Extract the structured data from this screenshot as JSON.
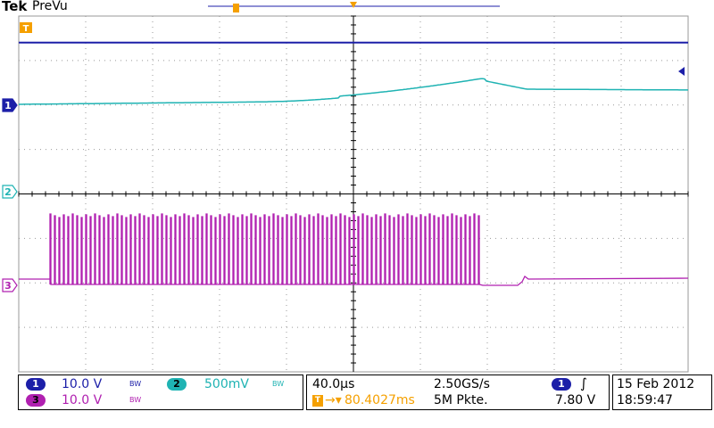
{
  "header": {
    "brand": "Tek",
    "mode": "PreVu"
  },
  "markers": {
    "trigger_position": "T",
    "ch1": "1",
    "ch2": "2",
    "ch3": "3"
  },
  "colors": {
    "ch1": "#1c1fa8",
    "ch2": "#1fb3b3",
    "ch3": "#b020b0",
    "trigger": "#f5a000",
    "grid": "#999999"
  },
  "channels": [
    {
      "num": "1",
      "scale": "10.0 V",
      "bw": "BW",
      "color": "#1c1fa8"
    },
    {
      "num": "2",
      "scale": "500mV",
      "bw": "BW",
      "color": "#1fb3b3"
    },
    {
      "num": "3",
      "scale": "10.0 V",
      "bw": "BW",
      "color": "#b020b0"
    }
  ],
  "timebase": {
    "scale": "40.0µs",
    "sample_rate": "2.50GS/s",
    "position": "80.4027ms",
    "record_length": "5M Pkte."
  },
  "trigger": {
    "source": "1",
    "slope_icon": "rising-edge-icon",
    "level": "7.80 V"
  },
  "datetime": {
    "date": "15 Feb  2012",
    "time": "18:59:47"
  }
}
